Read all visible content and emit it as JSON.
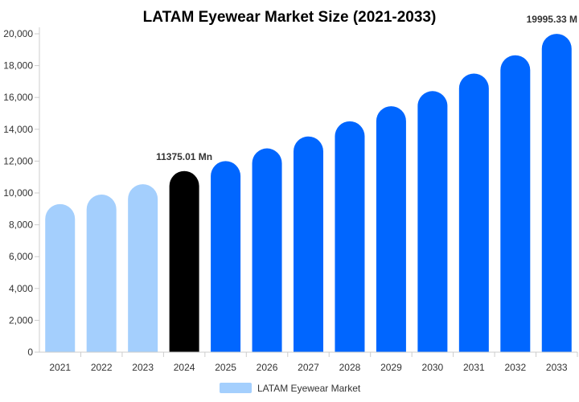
{
  "chart_data": {
    "type": "bar",
    "title": "LATAM Eyewear Market Size (2021-2033)",
    "xlabel": "",
    "ylabel": "",
    "categories": [
      "2021",
      "2022",
      "2023",
      "2024",
      "2025",
      "2026",
      "2027",
      "2028",
      "2029",
      "2030",
      "2031",
      "2032",
      "2033"
    ],
    "series": [
      {
        "name": "LATAM Eyewear Market",
        "values": [
          9300,
          9900,
          10550,
          11375.01,
          12000,
          12800,
          13550,
          14500,
          15450,
          16400,
          17500,
          18650,
          19995.33
        ]
      }
    ],
    "ylim": [
      0,
      20000
    ],
    "yticks": [
      0,
      2000,
      4000,
      6000,
      8000,
      10000,
      12000,
      14000,
      16000,
      18000,
      20000
    ],
    "ytick_labels": [
      "0",
      "2,000",
      "4,000",
      "6,000",
      "8,000",
      "10,000",
      "12,000",
      "14,000",
      "16,000",
      "18,000",
      "20,000"
    ],
    "bar_colors": [
      "#a4cffd",
      "#a4cffd",
      "#a4cffd",
      "#000000",
      "#0066ff",
      "#0066ff",
      "#0066ff",
      "#0066ff",
      "#0066ff",
      "#0066ff",
      "#0066ff",
      "#0066ff",
      "#0066ff"
    ],
    "annotations": [
      {
        "category": "2024",
        "text": "11375.01 Mn"
      },
      {
        "category": "2033",
        "text": "19995.33 M"
      }
    ],
    "legend": {
      "position": "bottom",
      "label": "LATAM Eyewear Market",
      "color": "#a4cffd"
    },
    "grid": false
  }
}
